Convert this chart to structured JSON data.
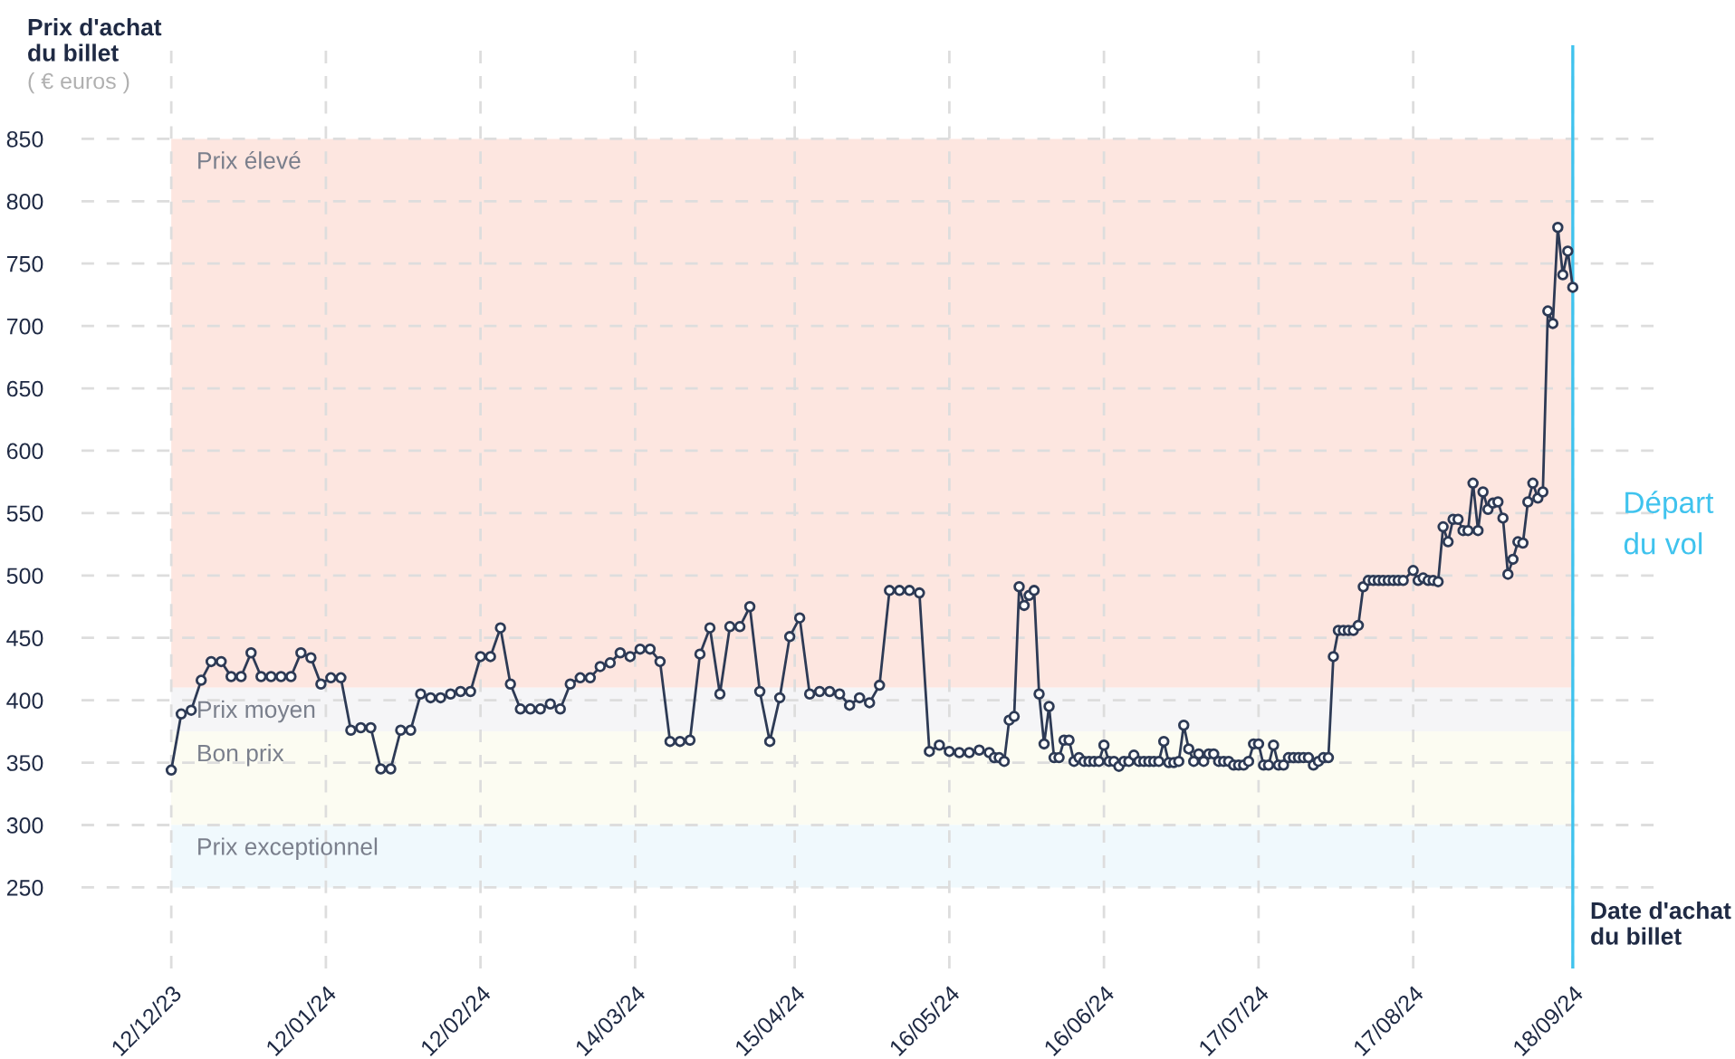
{
  "chart_data": {
    "type": "line",
    "ylabel": "Prix d'achat\ndu billet",
    "subtitle": "( € euros )",
    "xlabel": "Date d'achat\ndu billet",
    "x": [
      "2023-12-12",
      "2023-12-14",
      "2023-12-16",
      "2023-12-18",
      "2023-12-20",
      "2023-12-22",
      "2023-12-24",
      "2023-12-26",
      "2023-12-28",
      "2023-12-30",
      "2024-01-01",
      "2024-01-03",
      "2024-01-05",
      "2024-01-07",
      "2024-01-09",
      "2024-01-11",
      "2024-01-13",
      "2024-01-15",
      "2024-01-17",
      "2024-01-19",
      "2024-01-21",
      "2024-01-23",
      "2024-01-25",
      "2024-01-27",
      "2024-01-29",
      "2024-01-31",
      "2024-02-02",
      "2024-02-04",
      "2024-02-06",
      "2024-02-08",
      "2024-02-10",
      "2024-02-12",
      "2024-02-14",
      "2024-02-16",
      "2024-02-18",
      "2024-02-20",
      "2024-02-22",
      "2024-02-24",
      "2024-02-26",
      "2024-02-28",
      "2024-03-01",
      "2024-03-03",
      "2024-03-05",
      "2024-03-07",
      "2024-03-09",
      "2024-03-11",
      "2024-03-13",
      "2024-03-15",
      "2024-03-17",
      "2024-03-19",
      "2024-03-21",
      "2024-03-23",
      "2024-03-25",
      "2024-03-27",
      "2024-03-29",
      "2024-03-31",
      "2024-04-02",
      "2024-04-04",
      "2024-04-06",
      "2024-04-08",
      "2024-04-10",
      "2024-04-12",
      "2024-04-14",
      "2024-04-16",
      "2024-04-18",
      "2024-04-20",
      "2024-04-22",
      "2024-04-24",
      "2024-04-26",
      "2024-04-28",
      "2024-04-30",
      "2024-05-02",
      "2024-05-04",
      "2024-05-06",
      "2024-05-08",
      "2024-05-10",
      "2024-05-12",
      "2024-05-14",
      "2024-05-16",
      "2024-05-18",
      "2024-05-20",
      "2024-05-22",
      "2024-05-24",
      "2024-05-25",
      "2024-05-26",
      "2024-05-27",
      "2024-05-28",
      "2024-05-29",
      "2024-05-30",
      "2024-05-31",
      "2024-06-01",
      "2024-06-02",
      "2024-06-03",
      "2024-06-04",
      "2024-06-05",
      "2024-06-06",
      "2024-06-07",
      "2024-06-08",
      "2024-06-09",
      "2024-06-10",
      "2024-06-11",
      "2024-06-12",
      "2024-06-13",
      "2024-06-14",
      "2024-06-15",
      "2024-06-16",
      "2024-06-17",
      "2024-06-18",
      "2024-06-19",
      "2024-06-20",
      "2024-06-21",
      "2024-06-22",
      "2024-06-23",
      "2024-06-24",
      "2024-06-25",
      "2024-06-26",
      "2024-06-27",
      "2024-06-28",
      "2024-06-29",
      "2024-06-30",
      "2024-07-01",
      "2024-07-02",
      "2024-07-03",
      "2024-07-04",
      "2024-07-05",
      "2024-07-06",
      "2024-07-07",
      "2024-07-08",
      "2024-07-09",
      "2024-07-10",
      "2024-07-11",
      "2024-07-12",
      "2024-07-13",
      "2024-07-14",
      "2024-07-15",
      "2024-07-16",
      "2024-07-17",
      "2024-07-18",
      "2024-07-19",
      "2024-07-20",
      "2024-07-21",
      "2024-07-22",
      "2024-07-23",
      "2024-07-24",
      "2024-07-25",
      "2024-07-26",
      "2024-07-27",
      "2024-07-28",
      "2024-07-29",
      "2024-07-30",
      "2024-07-31",
      "2024-08-01",
      "2024-08-02",
      "2024-08-03",
      "2024-08-04",
      "2024-08-05",
      "2024-08-06",
      "2024-08-07",
      "2024-08-08",
      "2024-08-09",
      "2024-08-10",
      "2024-08-11",
      "2024-08-12",
      "2024-08-13",
      "2024-08-14",
      "2024-08-15",
      "2024-08-17",
      "2024-08-18",
      "2024-08-19",
      "2024-08-20",
      "2024-08-21",
      "2024-08-22",
      "2024-08-23",
      "2024-08-24",
      "2024-08-25",
      "2024-08-26",
      "2024-08-27",
      "2024-08-28",
      "2024-08-29",
      "2024-08-30",
      "2024-08-31",
      "2024-09-01",
      "2024-09-02",
      "2024-09-03",
      "2024-09-04",
      "2024-09-05",
      "2024-09-06",
      "2024-09-07",
      "2024-09-08",
      "2024-09-09",
      "2024-09-10",
      "2024-09-11",
      "2024-09-12",
      "2024-09-13",
      "2024-09-14",
      "2024-09-15",
      "2024-09-16",
      "2024-09-17",
      "2024-09-18"
    ],
    "series": [
      {
        "color": "#2d3a55",
        "values": [
          344,
          389,
          392,
          416,
          431,
          431,
          419,
          419,
          438,
          419,
          419,
          419,
          419,
          438,
          434,
          413,
          418,
          418,
          376,
          378,
          378,
          345,
          345,
          376,
          376,
          405,
          402,
          402,
          405,
          407,
          407,
          435,
          435,
          458,
          413,
          393,
          393,
          393,
          397,
          393,
          413,
          418,
          418,
          427,
          430,
          438,
          435,
          441,
          441,
          431,
          367,
          367,
          368,
          437,
          458,
          405,
          459,
          459,
          475,
          407,
          367,
          402,
          451,
          466,
          405,
          407,
          407,
          405,
          396,
          402,
          398,
          412,
          488,
          488,
          488,
          486,
          359,
          364,
          359,
          358,
          358,
          360,
          358,
          354,
          354,
          351,
          384,
          387,
          491,
          476,
          484,
          488,
          405,
          365,
          395,
          354,
          354,
          368,
          368,
          351,
          354,
          351,
          351,
          351,
          351,
          364,
          351,
          351,
          347,
          351,
          351,
          356,
          351,
          351,
          351,
          351,
          351,
          367,
          350,
          350,
          351,
          380,
          361,
          351,
          357,
          351,
          357,
          357,
          351,
          351,
          351,
          348,
          348,
          348,
          351,
          365,
          365,
          348,
          348,
          364,
          348,
          348,
          354,
          354,
          354,
          354,
          354,
          348,
          351,
          354,
          354,
          435,
          456,
          456,
          456,
          456,
          460,
          491,
          496,
          496,
          496,
          496,
          496,
          496,
          496,
          496,
          504,
          496,
          498,
          496,
          496,
          495,
          539,
          527,
          545,
          545,
          536,
          536,
          574,
          536,
          567,
          553,
          558,
          559,
          546,
          501,
          513,
          527,
          526,
          559,
          574,
          562,
          567,
          712,
          702,
          779,
          741,
          760,
          731
        ]
      }
    ],
    "marker": "circle",
    "line_style": "solid",
    "xlim": [
      "2023-11-24",
      "2024-10-06"
    ],
    "xticks": [
      {
        "value": "2023-12-12",
        "label": "12/12/23"
      },
      {
        "value": "2024-01-12",
        "label": "12/01/24"
      },
      {
        "value": "2024-02-12",
        "label": "12/02/24"
      },
      {
        "value": "2024-03-14",
        "label": "14/03/24"
      },
      {
        "value": "2024-04-15",
        "label": "15/04/24"
      },
      {
        "value": "2024-05-16",
        "label": "16/05/24"
      },
      {
        "value": "2024-06-16",
        "label": "16/06/24"
      },
      {
        "value": "2024-07-17",
        "label": "17/07/24"
      },
      {
        "value": "2024-08-17",
        "label": "17/08/24"
      },
      {
        "value": "2024-09-18",
        "label": "18/09/24"
      }
    ],
    "ylim": [
      185,
      925
    ],
    "yticks": [
      250,
      300,
      350,
      400,
      450,
      500,
      550,
      600,
      650,
      700,
      750,
      800,
      850
    ],
    "grid": true,
    "bands": [
      {
        "axis": "y",
        "from": 410,
        "to": 850,
        "label": "Prix élevé",
        "color": "#fde6e0"
      },
      {
        "axis": "y",
        "from": 375,
        "to": 410,
        "label": "Prix moyen",
        "color": "#f5f5f7"
      },
      {
        "axis": "y",
        "from": 300,
        "to": 375,
        "label": "Bon prix",
        "color": "#fcfcf2"
      },
      {
        "axis": "y",
        "from": 250,
        "to": 300,
        "label": "Prix exceptionnel",
        "color": "#f0f9fd"
      }
    ],
    "ref_lines": [
      {
        "axis": "x",
        "value": "2024-09-18",
        "label": "Départ\ndu vol",
        "color": "#3fc3ee",
        "line_style": "solid"
      }
    ]
  }
}
